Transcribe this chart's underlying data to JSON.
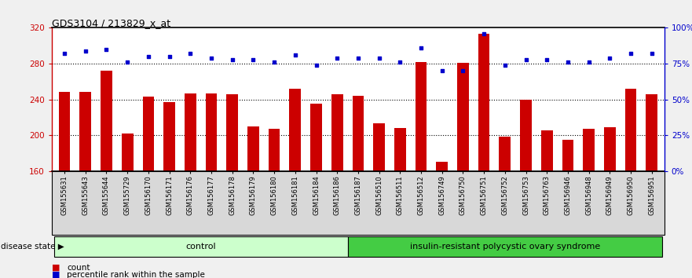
{
  "title": "GDS3104 / 213829_x_at",
  "samples": [
    "GSM155631",
    "GSM155643",
    "GSM155644",
    "GSM155729",
    "GSM156170",
    "GSM156171",
    "GSM156176",
    "GSM156177",
    "GSM156178",
    "GSM156179",
    "GSM156180",
    "GSM156181",
    "GSM156184",
    "GSM156186",
    "GSM156187",
    "GSM156510",
    "GSM156511",
    "GSM156512",
    "GSM156749",
    "GSM156750",
    "GSM156751",
    "GSM156752",
    "GSM156753",
    "GSM156763",
    "GSM156946",
    "GSM156948",
    "GSM156949",
    "GSM156950",
    "GSM156951"
  ],
  "bar_values": [
    248,
    248,
    272,
    202,
    243,
    237,
    247,
    247,
    246,
    210,
    207,
    252,
    235,
    246,
    244,
    213,
    208,
    282,
    170,
    281,
    313,
    198,
    240,
    205,
    195,
    207,
    209,
    252,
    246
  ],
  "percentile_values_pct": [
    82,
    84,
    85,
    76,
    80,
    80,
    82,
    79,
    78,
    78,
    76,
    81,
    74,
    79,
    79,
    79,
    76,
    86,
    70,
    70,
    96,
    74,
    78,
    78,
    76,
    76,
    79,
    82,
    82
  ],
  "control_count": 14,
  "control_label": "control",
  "disease_label": "insulin-resistant polycystic ovary syndrome",
  "disease_state_label": "disease state",
  "bar_color": "#cc0000",
  "dot_color": "#0000cc",
  "ylim_left": [
    160,
    320
  ],
  "yticks_left": [
    160,
    200,
    240,
    280,
    320
  ],
  "ylim_right": [
    0,
    100
  ],
  "yticks_right": [
    0,
    25,
    50,
    75,
    100
  ],
  "yticklabels_right": [
    "0%",
    "25%",
    "50%",
    "75%",
    "100%"
  ],
  "legend_count_label": "count",
  "legend_pct_label": "percentile rank within the sample",
  "bg_color": "#f0f0f0",
  "plot_bg": "#ffffff",
  "control_bg": "#ccffcc",
  "disease_bg": "#44cc44"
}
